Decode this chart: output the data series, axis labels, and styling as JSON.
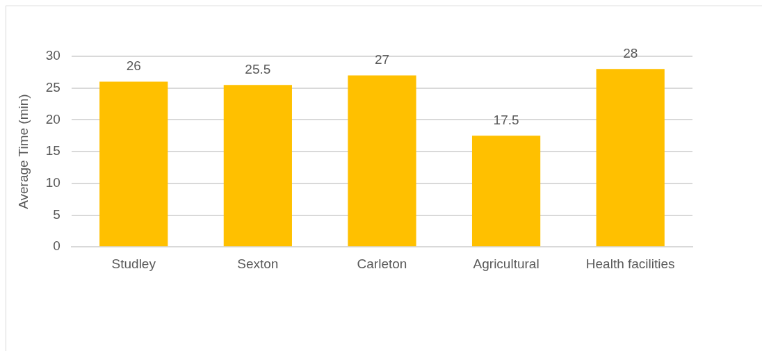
{
  "chart_data": {
    "type": "bar",
    "ylabel": "Average Time (min)",
    "categories": [
      "Studley",
      "Sexton",
      "Carleton",
      "Agricultural",
      "Health facilities"
    ],
    "values": [
      26,
      25.5,
      27,
      17.5,
      28
    ],
    "color": "#ffc000",
    "ylim": [
      0,
      30
    ],
    "yticks": [
      0,
      5,
      10,
      15,
      20,
      25,
      30
    ],
    "grid": "y",
    "legend": false,
    "data_labels": true
  }
}
